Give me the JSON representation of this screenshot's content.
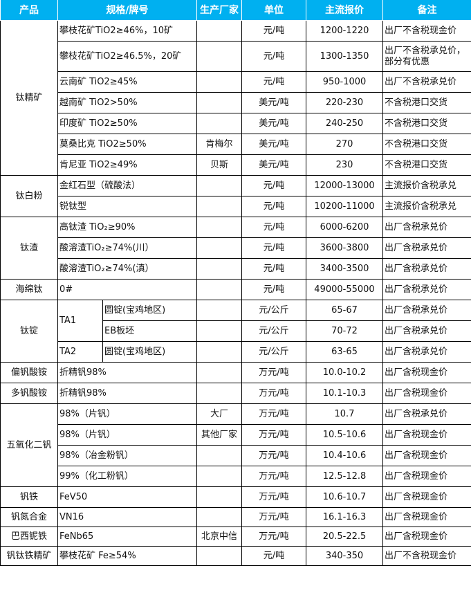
{
  "header_color": "#00B0F0",
  "headers": [
    "产品",
    "规格/牌号",
    "生产厂家",
    "单位",
    "主流报价",
    "备注"
  ],
  "rows": [
    [
      {
        "t": "钛精矿",
        "rs": 7,
        "a": "c"
      },
      {
        "t": "攀枝花矿TiO2≥46%，10矿",
        "cs": 2
      },
      {
        "t": ""
      },
      {
        "t": "元/吨"
      },
      {
        "t": "1200-1220"
      },
      {
        "t": "出厂不含税现金价",
        "a": "l"
      }
    ],
    [
      {
        "t": "攀枝花矿TiO2≥46.5%，20矿",
        "cs": 2,
        "wrap": true
      },
      {
        "t": ""
      },
      {
        "t": "元/吨"
      },
      {
        "t": "1300-1350"
      },
      {
        "t": "出厂不含税承兑价，部分有优惠",
        "a": "l",
        "wrap": true
      }
    ],
    [
      {
        "t": "云南矿 TiO2≥45%",
        "cs": 2
      },
      {
        "t": ""
      },
      {
        "t": "元/吨"
      },
      {
        "t": "950-1000"
      },
      {
        "t": "出厂不含税承兑价",
        "a": "l"
      }
    ],
    [
      {
        "t": "越南矿 TiO2>50%",
        "cs": 2
      },
      {
        "t": ""
      },
      {
        "t": "美元/吨"
      },
      {
        "t": "220-230"
      },
      {
        "t": "不含税港口交货",
        "a": "l"
      }
    ],
    [
      {
        "t": "印度矿 TiO2≥50%",
        "cs": 2
      },
      {
        "t": ""
      },
      {
        "t": "美元/吨"
      },
      {
        "t": "240-250"
      },
      {
        "t": "不含税港口交货",
        "a": "l"
      }
    ],
    [
      {
        "t": "莫桑比克 TiO2≥50%",
        "cs": 2
      },
      {
        "t": "肯梅尔"
      },
      {
        "t": "美元/吨"
      },
      {
        "t": "270"
      },
      {
        "t": "不含税港口交货",
        "a": "l"
      }
    ],
    [
      {
        "t": "肯尼亚 TiO2≥49%",
        "cs": 2
      },
      {
        "t": "贝斯"
      },
      {
        "t": "美元/吨"
      },
      {
        "t": "230"
      },
      {
        "t": "不含税港口交货",
        "a": "l"
      }
    ],
    [
      {
        "t": "钛白粉",
        "rs": 2,
        "a": "c"
      },
      {
        "t": "金红石型（硫酸法）",
        "cs": 2
      },
      {
        "t": ""
      },
      {
        "t": "元/吨"
      },
      {
        "t": "12000-13000"
      },
      {
        "t": "主流报价含税承兑",
        "a": "l"
      }
    ],
    [
      {
        "t": "锐钛型",
        "cs": 2
      },
      {
        "t": ""
      },
      {
        "t": "元/吨"
      },
      {
        "t": "10200-11000"
      },
      {
        "t": "主流报价含税承兑",
        "a": "l"
      }
    ],
    [
      {
        "t": "钛渣",
        "rs": 3,
        "a": "c"
      },
      {
        "t": "高钛渣 TiO₂≥90%",
        "cs": 2
      },
      {
        "t": ""
      },
      {
        "t": "元/吨"
      },
      {
        "t": "6000-6200"
      },
      {
        "t": "出厂含税承兑价",
        "a": "l"
      }
    ],
    [
      {
        "t": "酸溶渣TiO₂≥74%(川）",
        "cs": 2
      },
      {
        "t": ""
      },
      {
        "t": "元/吨"
      },
      {
        "t": "3600-3800"
      },
      {
        "t": "出厂含税承兑价",
        "a": "l"
      }
    ],
    [
      {
        "t": "酸溶渣TiO₂≥74%(滇）",
        "cs": 2
      },
      {
        "t": ""
      },
      {
        "t": "元/吨"
      },
      {
        "t": "3400-3500"
      },
      {
        "t": "出厂含税承兑价",
        "a": "l"
      }
    ],
    [
      {
        "t": "海绵钛",
        "a": "c"
      },
      {
        "t": "0#",
        "cs": 2
      },
      {
        "t": ""
      },
      {
        "t": "元/吨"
      },
      {
        "t": "49000-55000"
      },
      {
        "t": "出厂含税承兑价",
        "a": "l"
      }
    ],
    [
      {
        "t": "钛锭",
        "rs": 3,
        "a": "c"
      },
      {
        "t": "TA1",
        "rs": 2
      },
      {
        "t": "圆锭(宝鸡地区)"
      },
      {
        "t": ""
      },
      {
        "t": "元/公斤"
      },
      {
        "t": "65-67"
      },
      {
        "t": "出厂含税承兑价",
        "a": "l"
      }
    ],
    [
      {
        "t": "EB板坯"
      },
      {
        "t": ""
      },
      {
        "t": "元/公斤"
      },
      {
        "t": "70-72"
      },
      {
        "t": "出厂含税承兑价",
        "a": "l"
      }
    ],
    [
      {
        "t": "TA2"
      },
      {
        "t": "圆锭(宝鸡地区)"
      },
      {
        "t": ""
      },
      {
        "t": "元/公斤"
      },
      {
        "t": "63-65"
      },
      {
        "t": "出厂含税承兑价",
        "a": "l"
      }
    ],
    [
      {
        "t": "偏钒酸铵",
        "a": "c"
      },
      {
        "t": "折精钒98%",
        "cs": 2
      },
      {
        "t": ""
      },
      {
        "t": "万元/吨"
      },
      {
        "t": "10.0-10.2"
      },
      {
        "t": "出厂含税现金价",
        "a": "l"
      }
    ],
    [
      {
        "t": "多钒酸铵",
        "a": "c"
      },
      {
        "t": "折精钒98%",
        "cs": 2
      },
      {
        "t": ""
      },
      {
        "t": "万元/吨"
      },
      {
        "t": "10.1-10.3"
      },
      {
        "t": "出厂含税现金价",
        "a": "l"
      }
    ],
    [
      {
        "t": "五氧化二钒",
        "rs": 4,
        "a": "c"
      },
      {
        "t": "98%（片钒）",
        "cs": 2
      },
      {
        "t": "大厂"
      },
      {
        "t": "万元/吨"
      },
      {
        "t": "10.7"
      },
      {
        "t": "出厂含税承兑价",
        "a": "l"
      }
    ],
    [
      {
        "t": "98%（片钒）",
        "cs": 2
      },
      {
        "t": "其他厂家"
      },
      {
        "t": "万元/吨"
      },
      {
        "t": "10.5-10.6"
      },
      {
        "t": "出厂含税现金价",
        "a": "l"
      }
    ],
    [
      {
        "t": "98%（冶金粉钒）",
        "cs": 2
      },
      {
        "t": ""
      },
      {
        "t": "万元/吨"
      },
      {
        "t": "10.4-10.6"
      },
      {
        "t": "出厂含税现金价",
        "a": "l"
      }
    ],
    [
      {
        "t": "99%（化工粉钒）",
        "cs": 2
      },
      {
        "t": ""
      },
      {
        "t": "万元/吨"
      },
      {
        "t": "12.5-12.8"
      },
      {
        "t": "出厂含税现金价",
        "a": "l"
      }
    ],
    [
      {
        "t": "钒铁",
        "a": "c"
      },
      {
        "t": "FeV50",
        "cs": 2
      },
      {
        "t": ""
      },
      {
        "t": "万元/吨"
      },
      {
        "t": "10.6-10.7"
      },
      {
        "t": "出厂含税现金价",
        "a": "l"
      }
    ],
    [
      {
        "t": "钒氮合金",
        "a": "c"
      },
      {
        "t": "VN16",
        "cs": 2
      },
      {
        "t": ""
      },
      {
        "t": "万元/吨"
      },
      {
        "t": "16.1-16.3"
      },
      {
        "t": "出厂含税现金价",
        "a": "l"
      }
    ],
    [
      {
        "t": "巴西铌铁",
        "a": "c"
      },
      {
        "t": "FeNb65",
        "cs": 2
      },
      {
        "t": "北京中信"
      },
      {
        "t": "万元/吨"
      },
      {
        "t": "20.5-22.5"
      },
      {
        "t": "出厂含税现金价",
        "a": "l"
      }
    ],
    [
      {
        "t": "钒钛铁精矿",
        "a": "c"
      },
      {
        "t": "攀枝花矿 Fe≥54%",
        "cs": 2
      },
      {
        "t": ""
      },
      {
        "t": "元/吨"
      },
      {
        "t": "340-350"
      },
      {
        "t": "出厂不含税现金价",
        "a": "l"
      }
    ]
  ]
}
